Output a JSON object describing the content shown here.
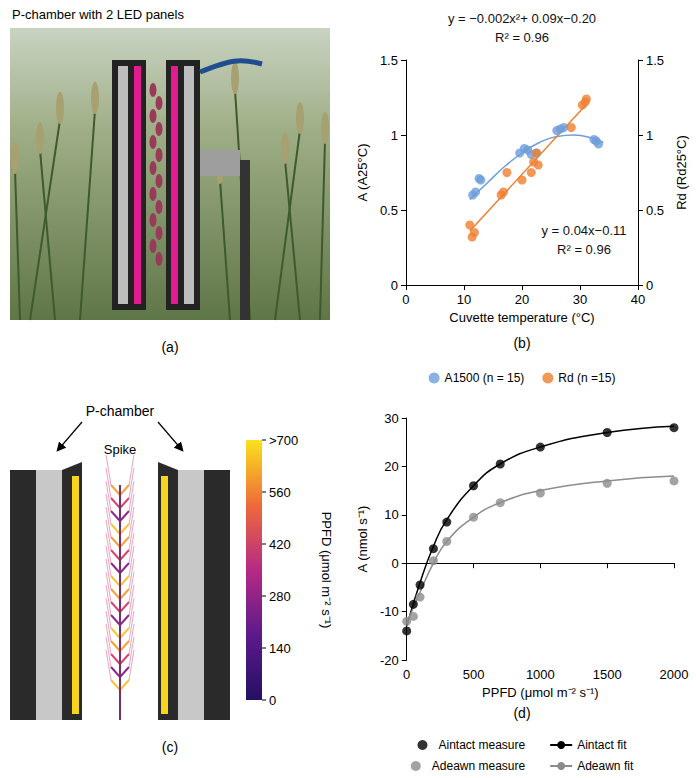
{
  "figure": {
    "panels": {
      "a": {
        "letter": "(a)",
        "title": "P-chamber with 2 LED panels"
      },
      "c": {
        "letter": "(c)",
        "labels": {
          "chamber": "P-chamber",
          "spike": "Spike"
        },
        "colorbar": {
          "title": "PPFD (μmol m⁻² s⁻¹)",
          "range": [
            0,
            700
          ],
          "ticks": [
            0,
            140,
            280,
            420,
            560,
            {
              "value": 700,
              "label": ">700"
            }
          ]
        }
      }
    }
  },
  "chart_data": [
    {
      "panel": "(b)",
      "type": "scatter",
      "xlabel": "Cuvette temperature (°C)",
      "ylabel": "A (A25°C)",
      "y2label": "Rd (Rd25°C)",
      "xlim": [
        0,
        40
      ],
      "xticks": [
        0,
        10,
        20,
        30,
        40
      ],
      "ylim": [
        0,
        1.5
      ],
      "yticks": [
        0,
        0.5,
        1,
        1.5
      ],
      "y2lim": [
        0,
        1.5
      ],
      "y2ticks": [
        0,
        0.5,
        1,
        1.5
      ],
      "grid": false,
      "legend": "bottom",
      "series": [
        {
          "name": "A1500 (n = 15)",
          "color": "#6d9eda",
          "marker": "circle",
          "x": [
            11.5,
            12.0,
            12.6,
            12.9,
            19.6,
            20.4,
            21.0,
            21.6,
            22.5,
            26.0,
            26.6,
            27.2,
            32.4,
            32.8,
            33.2
          ],
          "values": [
            0.6,
            0.62,
            0.71,
            0.7,
            0.88,
            0.91,
            0.9,
            0.87,
            0.88,
            1.03,
            1.04,
            1.05,
            0.97,
            0.96,
            0.94
          ]
        },
        {
          "name": "Rd (n =15)",
          "color": "#ef7f2f",
          "marker": "circle",
          "axis": "y2",
          "x": [
            11.0,
            11.4,
            11.8,
            16.4,
            16.8,
            17.4,
            20.0,
            21.6,
            22.0,
            22.5,
            22.8,
            28.5,
            30.4,
            30.9,
            31.1
          ],
          "values": [
            0.4,
            0.32,
            0.35,
            0.6,
            0.62,
            0.75,
            0.7,
            0.75,
            0.82,
            0.88,
            0.8,
            1.05,
            1.2,
            1.22,
            1.24
          ]
        }
      ],
      "fits": [
        {
          "type": "line",
          "color": "#6d9eda",
          "line_style": "solid",
          "x": [
            11,
            14,
            17,
            20,
            23,
            26,
            29,
            32,
            34
          ],
          "values": [
            0.57,
            0.68,
            0.79,
            0.88,
            0.95,
            0.99,
            1.0,
            0.98,
            0.95
          ],
          "annotations": [
            "y = −0.002x²+ 0.09x−0.20",
            "R² = 0.96"
          ]
        },
        {
          "type": "line",
          "color": "#ef7f2f",
          "line_style": "solid",
          "axis": "y2",
          "x": [
            11,
            31
          ],
          "values": [
            0.36,
            1.2
          ],
          "annotations": [
            "y = 0.04x−0.11",
            "R² = 0.96"
          ]
        }
      ]
    },
    {
      "panel": "(d)",
      "type": "scatter",
      "xlabel": "PPFD (μmol m⁻² s⁻¹)",
      "ylabel": "A (nmol s⁻¹)",
      "xlim": [
        0,
        2000
      ],
      "xticks": [
        0,
        500,
        1000,
        1500,
        2000
      ],
      "ylim": [
        -20,
        30
      ],
      "yticks": [
        -20,
        -10,
        0,
        10,
        20,
        30
      ],
      "grid": false,
      "legend": "bottom",
      "series": [
        {
          "name": "Aintact measure",
          "type": "scatter",
          "color": "#000000",
          "marker": "circle",
          "x": [
            0,
            50,
            100,
            200,
            300,
            500,
            700,
            1000,
            1500,
            2000
          ],
          "values": [
            -14,
            -8.5,
            -4.5,
            3,
            8.5,
            16,
            20.5,
            24,
            27,
            28
          ]
        },
        {
          "name": "Aintact fit",
          "type": "line",
          "color": "#000000",
          "line_style": "solid",
          "x": [
            0,
            100,
            200,
            300,
            500,
            700,
            1000,
            1500,
            2000
          ],
          "values": [
            -13,
            -4,
            3.5,
            9,
            16,
            20.5,
            24,
            27,
            28.3
          ]
        },
        {
          "name": "Adeawn measure",
          "type": "scatter",
          "color": "#8c8c8c",
          "marker": "circle",
          "x": [
            0,
            50,
            100,
            200,
            300,
            500,
            700,
            1000,
            1500,
            2000
          ],
          "values": [
            -12,
            -11,
            -7,
            0.5,
            4.5,
            9.5,
            12.5,
            14.5,
            16.5,
            17
          ]
        },
        {
          "name": "Adeawn fit",
          "type": "line",
          "color": "#8c8c8c",
          "line_style": "solid",
          "x": [
            0,
            100,
            200,
            300,
            500,
            700,
            1000,
            1500,
            2000
          ],
          "values": [
            -12.5,
            -6,
            0,
            4.5,
            9.5,
            12.5,
            15,
            17,
            18
          ]
        }
      ]
    }
  ]
}
